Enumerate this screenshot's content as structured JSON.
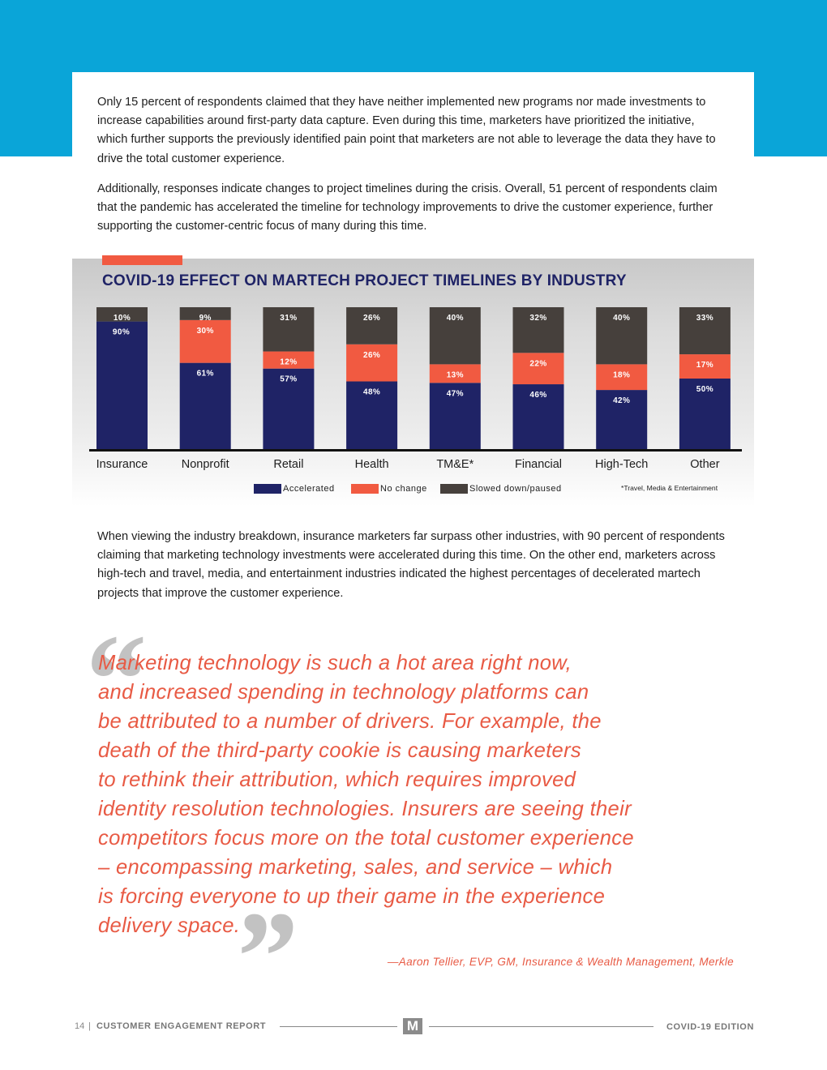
{
  "colors": {
    "top_band": "#0aa5d8",
    "accelerated": "#1f2366",
    "no_change": "#f15a41",
    "slowed": "#46403c",
    "quote": "#e85a44"
  },
  "intro": {
    "p1": "Only 15 percent of respondents claimed that they have neither implemented new programs nor made investments to increase capabilities around first-party data capture. Even during this time, marketers have prioritized the initiative, which further supports the previously identified pain point that marketers are not able to leverage the data they have to drive the total customer experience.",
    "p2": "Additionally, responses indicate changes to project timelines during the crisis. Overall, 51 percent of respondents claim that the pandemic has accelerated the timeline for technology improvements to drive the customer experience, further supporting the customer-centric focus of many during this time."
  },
  "chart_data": {
    "type": "bar",
    "stacked": true,
    "title": "COVID-19 EFFECT ON MARTECH PROJECT TIMELINES BY INDUSTRY",
    "categories": [
      "Insurance",
      "Nonprofit",
      "Retail",
      "Health",
      "TM&E*",
      "Financial",
      "High-Tech",
      "Other"
    ],
    "series": [
      {
        "name": "Accelerated",
        "values": [
          90,
          61,
          57,
          48,
          47,
          46,
          42,
          50
        ]
      },
      {
        "name": "No change",
        "values": [
          0,
          30,
          12,
          26,
          13,
          22,
          18,
          17
        ]
      },
      {
        "name": "Slowed down/paused",
        "values": [
          10,
          9,
          31,
          26,
          40,
          32,
          40,
          33
        ]
      }
    ],
    "ylim": [
      0,
      100
    ],
    "value_suffix": "%",
    "legend_position": "bottom",
    "footnote": "*Travel, Media & Entertainment"
  },
  "body": {
    "p3": "When viewing the industry breakdown, insurance marketers far surpass other industries, with 90 percent of respondents claiming that marketing technology investments were accelerated during this time. On the other end, marketers across high-tech and travel, media, and entertainment industries indicated the highest percentages of decelerated martech projects that improve the customer experience."
  },
  "quote": {
    "open_mark": "“",
    "close_mark": "”",
    "lines": [
      "Marketing technology is such a hot area right now,",
      "and increased spending in technology platforms can",
      "be attributed to a number of drivers. For example, the",
      "death of the third-party cookie is causing marketers",
      "to rethink their attribution, which requires improved",
      "identity resolution technologies. Insurers are seeing their",
      "competitors focus more on the total customer experience",
      "– encompassing marketing, sales, and service – which",
      "is forcing everyone to up their game in the experience",
      "delivery space."
    ],
    "attribution": "—Aaron Tellier, EVP, GM, Insurance & Wealth Management, Merkle"
  },
  "footer": {
    "page_number": "14",
    "separator": "|",
    "left_title": "CUSTOMER ENGAGEMENT REPORT",
    "logo_letter": "M",
    "right_title": "COVID-19 EDITION"
  }
}
